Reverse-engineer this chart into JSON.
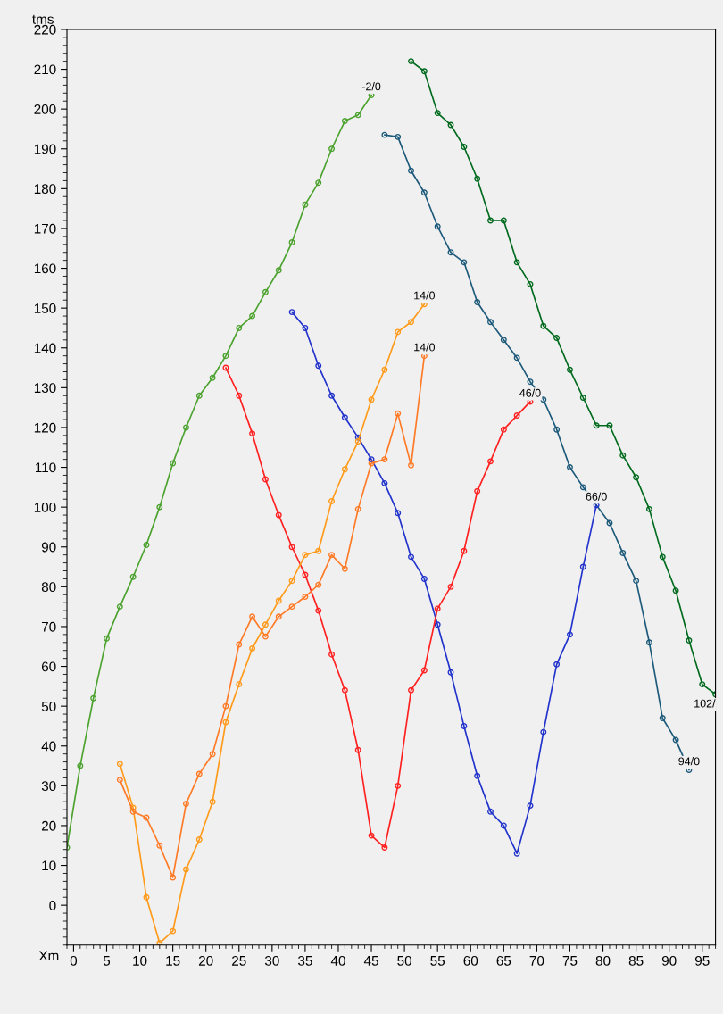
{
  "chart_data": {
    "type": "line",
    "ylabel": "tms",
    "xlabel": "Xm",
    "xlim": [
      -1,
      97
    ],
    "ylim": [
      -10,
      220
    ],
    "xticks": [
      0,
      5,
      10,
      15,
      20,
      25,
      30,
      35,
      40,
      45,
      50,
      55,
      60,
      65,
      70,
      75,
      80,
      85,
      90,
      95
    ],
    "yticks": [
      0,
      10,
      20,
      30,
      40,
      50,
      60,
      70,
      80,
      90,
      100,
      110,
      120,
      130,
      140,
      150,
      160,
      170,
      180,
      190,
      200,
      210,
      220
    ],
    "grid": false,
    "legend": false,
    "marker": "circle",
    "line_style": "solid",
    "series": [
      {
        "color": "#4ca22e",
        "x": [
          -1,
          1,
          3,
          5,
          7,
          9,
          11,
          13,
          15,
          17,
          19,
          21,
          23,
          25,
          27,
          29,
          31,
          33,
          35,
          37,
          39,
          41,
          43,
          45
        ],
        "values": [
          14.5,
          35,
          52,
          67,
          75,
          82.5,
          90.5,
          100,
          111,
          120,
          128,
          132.5,
          138,
          145,
          148,
          154,
          159.5,
          166.5,
          176,
          181.5,
          190,
          197,
          198.5,
          203.5
        ]
      },
      {
        "color": "#006b1e",
        "x": [
          51,
          53,
          55,
          57,
          59,
          61,
          63,
          65,
          67,
          69,
          71,
          73,
          75,
          77,
          79,
          81,
          83,
          85,
          87,
          89,
          91,
          93,
          95,
          97
        ],
        "values": [
          212,
          209.5,
          199,
          196,
          190.5,
          182.5,
          172,
          172,
          161.5,
          156,
          145.5,
          142.5,
          134.5,
          127.5,
          120.5,
          120.5,
          113,
          107.5,
          99.5,
          87.5,
          79,
          66.5,
          55.5,
          53
        ]
      },
      {
        "color": "#1d5a7a",
        "x": [
          47,
          49,
          51,
          53,
          55,
          57,
          59,
          61,
          63,
          65,
          67,
          69,
          71,
          73,
          75,
          77,
          79,
          81,
          83,
          85,
          87,
          89,
          91,
          93
        ],
        "values": [
          193.5,
          193,
          184.5,
          179,
          170.5,
          164,
          161.5,
          151.5,
          146.5,
          142,
          137.5,
          131.5,
          127,
          119.5,
          110,
          105,
          null,
          96,
          88.5,
          81.5,
          66,
          47,
          41.5,
          34
        ]
      },
      {
        "color": "#2233cc",
        "x": [
          33,
          35,
          37,
          39,
          41,
          43,
          45,
          47,
          49,
          51,
          53,
          55,
          57,
          59,
          61,
          63,
          65,
          67,
          69,
          71,
          73,
          75,
          77,
          79
        ],
        "values": [
          149,
          145,
          135.5,
          128,
          122.5,
          117.5,
          112,
          106,
          98.5,
          87.5,
          82,
          70.5,
          58.5,
          45,
          32.5,
          23.5,
          20,
          13,
          25,
          43.5,
          60.5,
          68,
          85,
          100.5
        ]
      },
      {
        "color": "#ff2020",
        "x": [
          23,
          25,
          27,
          29,
          31,
          33,
          35,
          37,
          39,
          41,
          43,
          45,
          47,
          49,
          51,
          53,
          55,
          57,
          59,
          61,
          63,
          65,
          67,
          69
        ],
        "values": [
          135,
          128,
          118.5,
          107,
          98,
          90,
          83,
          74,
          63,
          54,
          39,
          17.5,
          14.5,
          30,
          54,
          59,
          74.5,
          80,
          89,
          104,
          111.5,
          119.5,
          123,
          126.5
        ]
      },
      {
        "color": "#ff9a1a",
        "x": [
          7,
          9,
          11,
          13,
          15,
          17,
          19,
          21,
          23,
          25,
          27,
          29,
          31,
          33,
          35,
          37,
          39,
          41,
          43,
          45,
          47,
          49,
          51,
          53
        ],
        "values": [
          35.5,
          24.5,
          2,
          -9.5,
          -6.5,
          9,
          16.5,
          26,
          46,
          55.5,
          64.5,
          70.5,
          76.5,
          81.5,
          88,
          89,
          101.5,
          109.5,
          116.5,
          127,
          134.5,
          144,
          146.5,
          151
        ]
      },
      {
        "color": "#ff7a26",
        "x": [
          7,
          9,
          11,
          13,
          15,
          17,
          19,
          21,
          23,
          25,
          27,
          29,
          31,
          33,
          35,
          37,
          39,
          41,
          43,
          45,
          47,
          49,
          51,
          53
        ],
        "values": [
          31.5,
          23.5,
          22,
          15,
          7,
          25.5,
          33,
          38,
          50,
          65.5,
          72.5,
          67.5,
          72.5,
          75,
          77.5,
          80.5,
          88,
          84.5,
          99.5,
          111,
          112,
          123.5,
          110.5,
          138
        ]
      }
    ],
    "annotations": [
      {
        "text": "-2/0",
        "x": 45,
        "y": 203.5
      },
      {
        "text": "14/0",
        "x": 53,
        "y": 151
      },
      {
        "text": "14/0",
        "x": 53,
        "y": 138
      },
      {
        "text": "46/0",
        "x": 69,
        "y": 126.5
      },
      {
        "text": "66/0",
        "x": 79,
        "y": 100.5
      },
      {
        "text": "94/0",
        "x": 93,
        "y": 34
      },
      {
        "text": "102/",
        "x": 97,
        "y": 53
      }
    ]
  }
}
